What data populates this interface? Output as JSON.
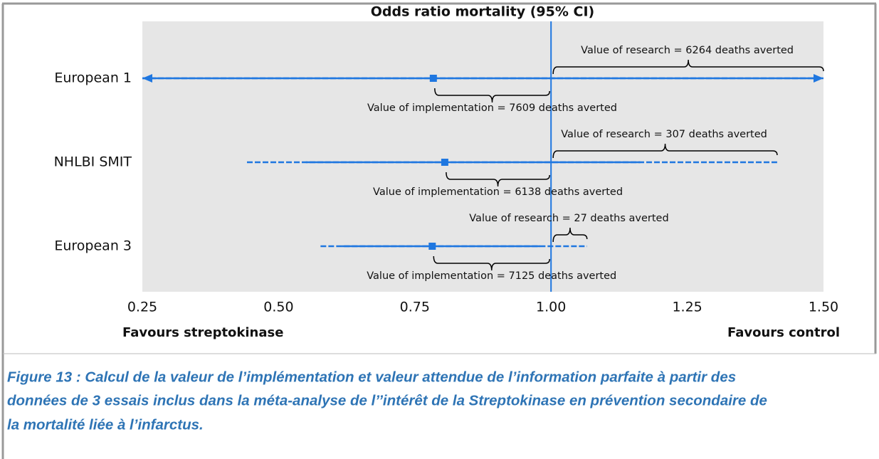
{
  "chart_data": {
    "type": "forest",
    "title": "Odds ratio mortality (95% CI)",
    "xlim": [
      0.25,
      1.5
    ],
    "xticks": [
      {
        "value": 0.25,
        "label": "0.25"
      },
      {
        "value": 0.5,
        "label": "0.50"
      },
      {
        "value": 0.75,
        "label": "0.75"
      },
      {
        "value": 1,
        "label": "1.00"
      },
      {
        "value": 1.25,
        "label": "1.25"
      },
      {
        "value": 1.5,
        "label": "1.50"
      }
    ],
    "reference_line": 1,
    "color": "#1f77e0",
    "left_label": "Favours streptokinase",
    "right_label": "Favours control",
    "studies": [
      {
        "name": "European 1",
        "estimate": 0.784,
        "solid_low": 0.25,
        "solid_high": 1.5,
        "ci_low": 0.25,
        "ci_high": 1.5,
        "arrows": true,
        "research_end": 1.5,
        "research_label": "Value of research = 6264 deaths averted",
        "implementation_label": "Value of implementation = 7609 deaths averted"
      },
      {
        "name": "NHLBI SMIT",
        "estimate": 0.805,
        "solid_low": 0.55,
        "solid_high": 1.164,
        "ci_low": 0.442,
        "ci_high": 1.415,
        "arrows": false,
        "research_end": 1.415,
        "research_label": "Value of research = 307 deaths averted",
        "implementation_label": "Value of implementation = 6138 deaths averted"
      },
      {
        "name": "European 3",
        "estimate": 0.782,
        "solid_low": 0.616,
        "solid_high": 0.98,
        "ci_low": 0.577,
        "ci_high": 1.066,
        "arrows": false,
        "research_end": 1.066,
        "research_label": "Value of research = 27 deaths averted",
        "implementation_label": "Value of implementation = 7125 deaths averted"
      }
    ]
  },
  "caption": [
    "Figure 13 : Calcul de la valeur de l’implémentation et valeur attendue de l’information parfaite à partir des",
    "données de 3 essais inclus dans la méta-analyse de l’’intérêt de la Streptokinase en prévention secondaire de",
    "la mortalité liée à l’infarctus."
  ]
}
